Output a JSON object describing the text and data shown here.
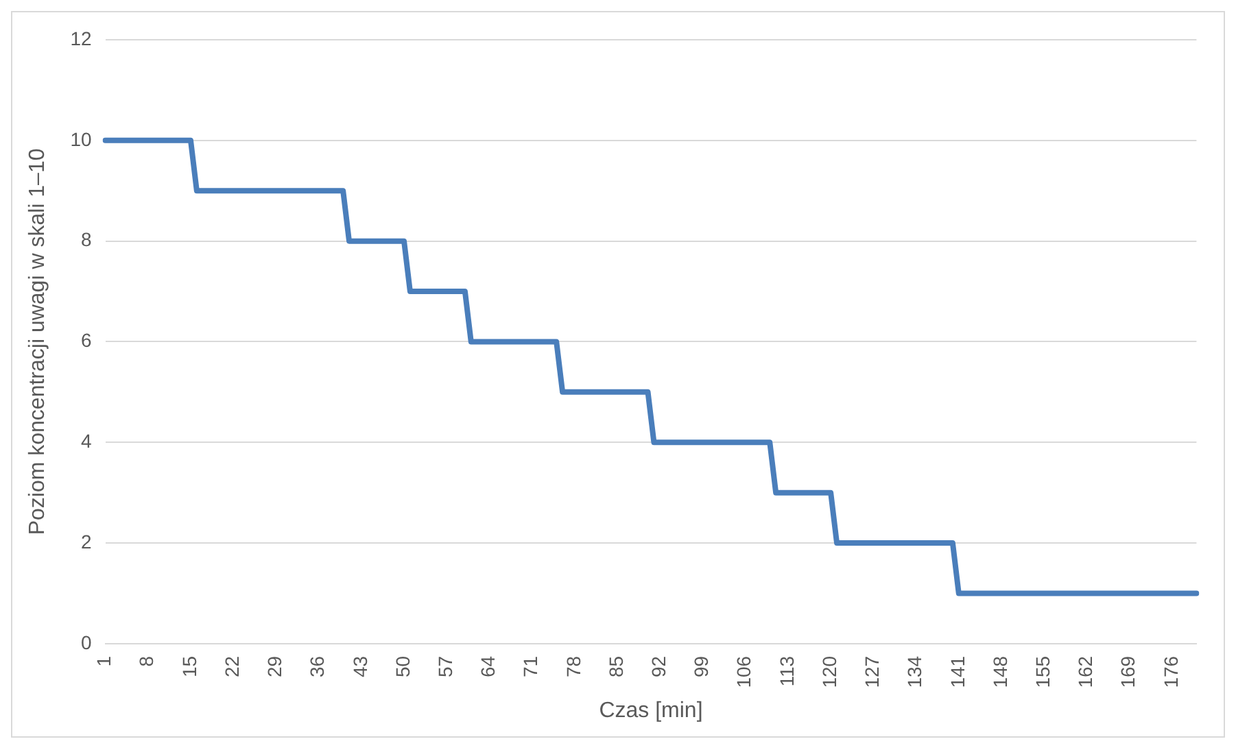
{
  "chart_data": {
    "type": "line",
    "xlabel": "Czas [min]",
    "ylabel": "Poziom koncentracji uwagi w skali 1–10",
    "categories": [
      "1",
      null,
      null,
      null,
      null,
      null,
      null,
      "8",
      null,
      null,
      null,
      null,
      null,
      null,
      "15",
      null,
      null,
      null,
      null,
      null,
      null,
      "22",
      null,
      null,
      null,
      null,
      null,
      null,
      "29",
      null,
      null,
      null,
      null,
      null,
      null,
      "36",
      null,
      null,
      null,
      null,
      null,
      null,
      "43",
      null,
      null,
      null,
      null,
      null,
      null,
      "50",
      null,
      null,
      null,
      null,
      null,
      null,
      "57",
      null,
      null,
      null,
      null,
      null,
      null,
      "64",
      null,
      null,
      null,
      null,
      null,
      null,
      "71",
      null,
      null,
      null,
      null,
      null,
      null,
      "78",
      null,
      null,
      null,
      null,
      null,
      null,
      "85",
      null,
      null,
      null,
      null,
      null,
      null,
      "92",
      null,
      null,
      null,
      null,
      null,
      null,
      "99",
      null,
      null,
      null,
      null,
      null,
      null,
      "106",
      null,
      null,
      null,
      null,
      null,
      null,
      "113",
      null,
      null,
      null,
      null,
      null,
      null,
      "120",
      null,
      null,
      null,
      null,
      null,
      null,
      "127",
      null,
      null,
      null,
      null,
      null,
      null,
      "134",
      null,
      null,
      null,
      null,
      null,
      null,
      "141",
      null,
      null,
      null,
      null,
      null,
      null,
      "148",
      null,
      null,
      null,
      null,
      null,
      null,
      "155",
      null,
      null,
      null,
      null,
      null,
      null,
      "162",
      null,
      null,
      null,
      null,
      null,
      null,
      "169",
      null,
      null,
      null,
      null,
      null,
      null,
      "176",
      null,
      null,
      null,
      null
    ],
    "series": [
      {
        "color": "#4a7ebb",
        "values": [
          10,
          10,
          10,
          10,
          10,
          10,
          10,
          10,
          10,
          10,
          10,
          10,
          10,
          10,
          10,
          9,
          9,
          9,
          9,
          9,
          9,
          9,
          9,
          9,
          9,
          9,
          9,
          9,
          9,
          9,
          9,
          9,
          9,
          9,
          9,
          9,
          9,
          9,
          9,
          9,
          8,
          8,
          8,
          8,
          8,
          8,
          8,
          8,
          8,
          8,
          7,
          7,
          7,
          7,
          7,
          7,
          7,
          7,
          7,
          7,
          6,
          6,
          6,
          6,
          6,
          6,
          6,
          6,
          6,
          6,
          6,
          6,
          6,
          6,
          6,
          5,
          5,
          5,
          5,
          5,
          5,
          5,
          5,
          5,
          5,
          5,
          5,
          5,
          5,
          5,
          4,
          4,
          4,
          4,
          4,
          4,
          4,
          4,
          4,
          4,
          4,
          4,
          4,
          4,
          4,
          4,
          4,
          4,
          4,
          4,
          3,
          3,
          3,
          3,
          3,
          3,
          3,
          3,
          3,
          3,
          2,
          2,
          2,
          2,
          2,
          2,
          2,
          2,
          2,
          2,
          2,
          2,
          2,
          2,
          2,
          2,
          2,
          2,
          2,
          2,
          1,
          1,
          1,
          1,
          1,
          1,
          1,
          1,
          1,
          1,
          1,
          1,
          1,
          1,
          1,
          1,
          1,
          1,
          1,
          1,
          1,
          1,
          1,
          1,
          1,
          1,
          1,
          1,
          1,
          1,
          1,
          1,
          1,
          1,
          1,
          1,
          1,
          1,
          1,
          1
        ]
      }
    ],
    "ylim": [
      0,
      12
    ],
    "yticks": [
      0,
      2,
      4,
      6,
      8,
      10,
      12
    ],
    "grid": "y",
    "legend": false,
    "marker": "none",
    "line_style": "solid"
  }
}
